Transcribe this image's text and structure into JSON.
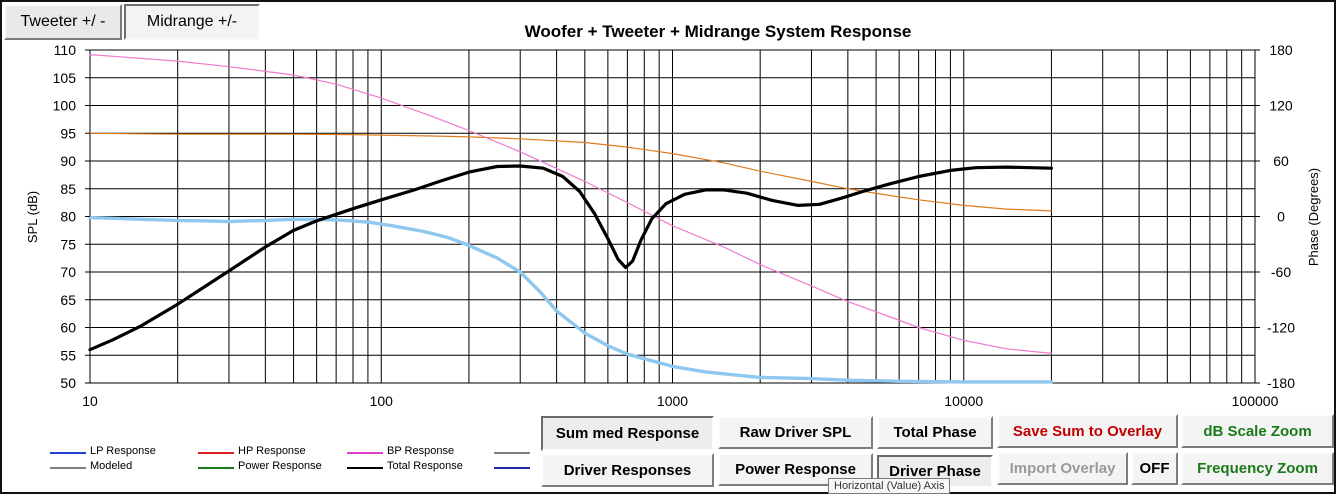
{
  "toolbar": {
    "tweeter_label": "Tweeter +/ -",
    "midrange_label": "Midrange  +/-"
  },
  "chart_data": {
    "type": "line",
    "title": "Woofer + Tweeter + Midrange  System Response",
    "xlabel": "",
    "ylabel": "SPL (dB)",
    "y2label": "Phase (Degrees)",
    "xscale": "log",
    "xlim": [
      10,
      100000
    ],
    "ylim": [
      50,
      110
    ],
    "y2lim": [
      -180,
      180
    ],
    "grid": true,
    "x_ticks": [
      "10",
      "100",
      "1000",
      "10000",
      "100000"
    ],
    "y_ticks": [
      "50",
      "55",
      "60",
      "65",
      "70",
      "75",
      "80",
      "85",
      "90",
      "95",
      "100",
      "105",
      "110"
    ],
    "y2_ticks": [
      "-180",
      "-120",
      "-60",
      "0",
      "60",
      "120",
      "180"
    ],
    "series": [
      {
        "name": "Total Response",
        "axis": "left",
        "color": "#000000",
        "width": 3.2,
        "points": [
          [
            10,
            56
          ],
          [
            12,
            57.8
          ],
          [
            15,
            60.3
          ],
          [
            20,
            64.2
          ],
          [
            25,
            67.5
          ],
          [
            30,
            70.2
          ],
          [
            40,
            74.5
          ],
          [
            50,
            77.5
          ],
          [
            60,
            79.2
          ],
          [
            70,
            80.4
          ],
          [
            80,
            81.4
          ],
          [
            100,
            83
          ],
          [
            130,
            84.8
          ],
          [
            160,
            86.4
          ],
          [
            200,
            88
          ],
          [
            250,
            89
          ],
          [
            300,
            89.1
          ],
          [
            360,
            88.7
          ],
          [
            420,
            87.2
          ],
          [
            480,
            84.5
          ],
          [
            540,
            80.5
          ],
          [
            600,
            76
          ],
          [
            650,
            72.3
          ],
          [
            690,
            70.8
          ],
          [
            730,
            72
          ],
          [
            780,
            75.8
          ],
          [
            850,
            79.6
          ],
          [
            950,
            82.3
          ],
          [
            1100,
            84
          ],
          [
            1300,
            84.8
          ],
          [
            1500,
            84.8
          ],
          [
            1800,
            84.2
          ],
          [
            2200,
            82.9
          ],
          [
            2700,
            82
          ],
          [
            3200,
            82.2
          ],
          [
            3800,
            83.3
          ],
          [
            4500,
            84.5
          ],
          [
            5500,
            85.8
          ],
          [
            7000,
            87.2
          ],
          [
            9000,
            88.3
          ],
          [
            11000,
            88.8
          ],
          [
            14000,
            88.9
          ],
          [
            20000,
            88.7
          ]
        ]
      },
      {
        "name": "BP Response",
        "axis": "right",
        "color": "#f07ad0",
        "width": 1.2,
        "points": [
          [
            10,
            175
          ],
          [
            20,
            168
          ],
          [
            30,
            162
          ],
          [
            50,
            153
          ],
          [
            70,
            143
          ],
          [
            100,
            128
          ],
          [
            150,
            108
          ],
          [
            200,
            93
          ],
          [
            300,
            70
          ],
          [
            400,
            52
          ],
          [
            500,
            38
          ],
          [
            700,
            15
          ],
          [
            1000,
            -10
          ],
          [
            1500,
            -33
          ],
          [
            2000,
            -52
          ],
          [
            3000,
            -75
          ],
          [
            4000,
            -92
          ],
          [
            5000,
            -103
          ],
          [
            7000,
            -120
          ],
          [
            10000,
            -134
          ],
          [
            14000,
            -143
          ],
          [
            20000,
            -148
          ]
        ]
      },
      {
        "name": "",
        "axis": "right",
        "color": "#e07b20",
        "width": 1.2,
        "points": [
          [
            10,
            90
          ],
          [
            20,
            89
          ],
          [
            30,
            89
          ],
          [
            50,
            89
          ],
          [
            80,
            88.5
          ],
          [
            100,
            88
          ],
          [
            150,
            87
          ],
          [
            200,
            86
          ],
          [
            300,
            84
          ],
          [
            500,
            80
          ],
          [
            700,
            75
          ],
          [
            1000,
            68
          ],
          [
            1500,
            58
          ],
          [
            2000,
            49
          ],
          [
            3000,
            38
          ],
          [
            4000,
            30
          ],
          [
            5000,
            25
          ],
          [
            7000,
            18
          ],
          [
            10000,
            12
          ],
          [
            14000,
            8
          ],
          [
            20000,
            6
          ]
        ]
      },
      {
        "name": "",
        "axis": "left",
        "color": "#8ec7f0",
        "width": 3.4,
        "points": [
          [
            10,
            79.8
          ],
          [
            15,
            79.5
          ],
          [
            20,
            79.3
          ],
          [
            25,
            79.2
          ],
          [
            30,
            79.1
          ],
          [
            40,
            79.3
          ],
          [
            50,
            79.5
          ],
          [
            70,
            79.4
          ],
          [
            90,
            79
          ],
          [
            110,
            78.3
          ],
          [
            140,
            77.3
          ],
          [
            170,
            76.2
          ],
          [
            200,
            74.8
          ],
          [
            250,
            72.5
          ],
          [
            300,
            70
          ],
          [
            350,
            66.5
          ],
          [
            400,
            63
          ],
          [
            500,
            59
          ],
          [
            600,
            56.7
          ],
          [
            700,
            55.2
          ],
          [
            850,
            54
          ],
          [
            1000,
            53
          ],
          [
            1300,
            52
          ],
          [
            1600,
            51.5
          ],
          [
            2000,
            51
          ],
          [
            3000,
            50.8
          ],
          [
            4000,
            50.5
          ],
          [
            6000,
            50.3
          ],
          [
            10000,
            50.2
          ],
          [
            20000,
            50.2
          ]
        ]
      }
    ],
    "legend": [
      {
        "label": "LP Response",
        "color": "#1f3fd6"
      },
      {
        "label": "HP Response",
        "color": "#dd2020"
      },
      {
        "label": "BP Response",
        "color": "#e040c8"
      },
      {
        "label": "",
        "color": "#808080"
      },
      {
        "label": "Modeled",
        "color": "#808080"
      },
      {
        "label": "Power Response",
        "color": "#1a7a1a"
      },
      {
        "label": "Total Response",
        "color": "#000000"
      },
      {
        "label": "",
        "color": "#1f2aa0"
      }
    ]
  },
  "buttons": {
    "summed_response": "Sum med Response",
    "raw_driver_spl": "Raw Driver SPL",
    "total_phase": "Total Phase",
    "save_sum_to_overlay": "Save Sum to Overlay",
    "db_scale_zoom": "dB Scale Zoom",
    "driver_responses": "Driver Responses",
    "power_response": "Power Response",
    "driver_phase": "Driver Phase",
    "import_overlay": "Import Overlay",
    "off": "OFF",
    "frequency_zoom": "Frequency Zoom"
  },
  "colors": {
    "save_red": "#c00000",
    "zoom_green": "#1a7a1a",
    "disabled_gray": "#9a9a9a"
  },
  "tooltip": "Horizontal (Value) Axis"
}
